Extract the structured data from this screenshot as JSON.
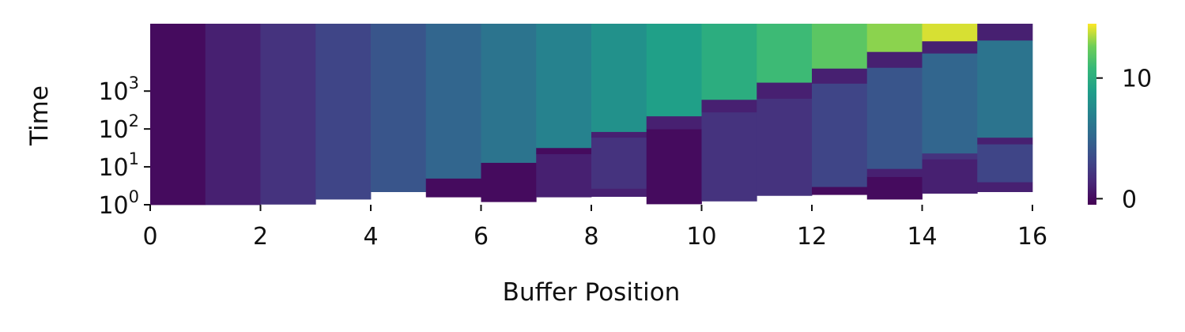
{
  "chart_data": {
    "type": "heatmap",
    "title": "",
    "xlabel": "Buffer Position",
    "ylabel": "Time",
    "x_ticks": [
      "0",
      "2",
      "4",
      "6",
      "8",
      "10",
      "12",
      "14",
      "16"
    ],
    "x_tick_values": [
      0,
      2,
      4,
      6,
      8,
      10,
      12,
      14,
      16
    ],
    "xlim": [
      0,
      16
    ],
    "y_scale": "log",
    "y_ticks": [
      {
        "base": "10",
        "exp": "0",
        "value": 1
      },
      {
        "base": "10",
        "exp": "1",
        "value": 10
      },
      {
        "base": "10",
        "exp": "2",
        "value": 100
      },
      {
        "base": "10",
        "exp": "3",
        "value": 1000
      }
    ],
    "ylim": [
      1,
      60000
    ],
    "colormap": "viridis",
    "colorbar": {
      "range": [
        -0.5,
        14.5
      ],
      "ticks": [
        {
          "label": "0",
          "value": 0
        },
        {
          "label": "10",
          "value": 10
        }
      ]
    },
    "columns": [
      {
        "position": 0,
        "start_time": 1,
        "segments": [
          {
            "from": 1,
            "to": 60000,
            "value": 0
          }
        ]
      },
      {
        "position": 1,
        "start_time": 1,
        "segments": [
          {
            "from": 1,
            "to": 60000,
            "value": 1
          }
        ]
      },
      {
        "position": 2,
        "start_time": 1.03,
        "segments": [
          {
            "from": 1.03,
            "to": 60000,
            "value": 2
          }
        ]
      },
      {
        "position": 3,
        "start_time": 1.4,
        "segments": [
          {
            "from": 1.4,
            "to": 60000,
            "value": 3
          }
        ]
      },
      {
        "position": 4,
        "start_time": 2.2,
        "segments": [
          {
            "from": 2.2,
            "to": 60000,
            "value": 4
          }
        ]
      },
      {
        "position": 5,
        "start_time": 1.6,
        "segments": [
          {
            "from": 1.6,
            "to": 5,
            "value": 0
          },
          {
            "from": 5,
            "to": 60000,
            "value": 5
          }
        ]
      },
      {
        "position": 6,
        "start_time": 1.2,
        "segments": [
          {
            "from": 1.2,
            "to": 13,
            "value": 0
          },
          {
            "from": 13,
            "to": 60000,
            "value": 6
          }
        ]
      },
      {
        "position": 7,
        "start_time": 1.6,
        "segments": [
          {
            "from": 1.6,
            "to": 22,
            "value": 1
          },
          {
            "from": 22,
            "to": 32,
            "value": 0
          },
          {
            "from": 32,
            "to": 60000,
            "value": 7
          }
        ]
      },
      {
        "position": 8,
        "start_time": 1.65,
        "segments": [
          {
            "from": 1.65,
            "to": 2.7,
            "value": 1
          },
          {
            "from": 2.7,
            "to": 60,
            "value": 2
          },
          {
            "from": 60,
            "to": 85,
            "value": 1
          },
          {
            "from": 85,
            "to": 60000,
            "value": 8
          }
        ]
      },
      {
        "position": 9,
        "start_time": 1.05,
        "segments": [
          {
            "from": 1.05,
            "to": 100,
            "value": 0
          },
          {
            "from": 100,
            "to": 220,
            "value": 1
          },
          {
            "from": 220,
            "to": 60000,
            "value": 9
          }
        ]
      },
      {
        "position": 10,
        "start_time": 1.25,
        "segments": [
          {
            "from": 1.25,
            "to": 280,
            "value": 2
          },
          {
            "from": 280,
            "to": 600,
            "value": 1
          },
          {
            "from": 600,
            "to": 60000,
            "value": 10
          }
        ]
      },
      {
        "position": 11,
        "start_time": 1.75,
        "segments": [
          {
            "from": 1.75,
            "to": 640,
            "value": 2
          },
          {
            "from": 640,
            "to": 1700,
            "value": 1
          },
          {
            "from": 1700,
            "to": 60000,
            "value": 11
          }
        ]
      },
      {
        "position": 12,
        "start_time": 1.85,
        "segments": [
          {
            "from": 1.85,
            "to": 3,
            "value": 0
          },
          {
            "from": 3,
            "to": 1600,
            "value": 3
          },
          {
            "from": 1600,
            "to": 4000,
            "value": 1
          },
          {
            "from": 4000,
            "to": 60000,
            "value": 12
          }
        ]
      },
      {
        "position": 13,
        "start_time": 1.4,
        "segments": [
          {
            "from": 1.4,
            "to": 5.5,
            "value": 0
          },
          {
            "from": 5.5,
            "to": 9,
            "value": 1
          },
          {
            "from": 9,
            "to": 4200,
            "value": 4
          },
          {
            "from": 4200,
            "to": 11000,
            "value": 1
          },
          {
            "from": 11000,
            "to": 60000,
            "value": 13
          }
        ]
      },
      {
        "position": 14,
        "start_time": 2,
        "segments": [
          {
            "from": 2,
            "to": 16,
            "value": 1
          },
          {
            "from": 16,
            "to": 23,
            "value": 2
          },
          {
            "from": 23,
            "to": 10000,
            "value": 5
          },
          {
            "from": 10000,
            "to": 21000,
            "value": 1
          },
          {
            "from": 21000,
            "to": 60000,
            "value": 14
          }
        ]
      },
      {
        "position": 15,
        "start_time": 2.2,
        "segments": [
          {
            "from": 2.2,
            "to": 4,
            "value": 1
          },
          {
            "from": 4,
            "to": 40,
            "value": 3
          },
          {
            "from": 40,
            "to": 60,
            "value": 1
          },
          {
            "from": 60,
            "to": 22000,
            "value": 6
          },
          {
            "from": 22000,
            "to": 60000,
            "value": 1
          }
        ]
      }
    ]
  }
}
